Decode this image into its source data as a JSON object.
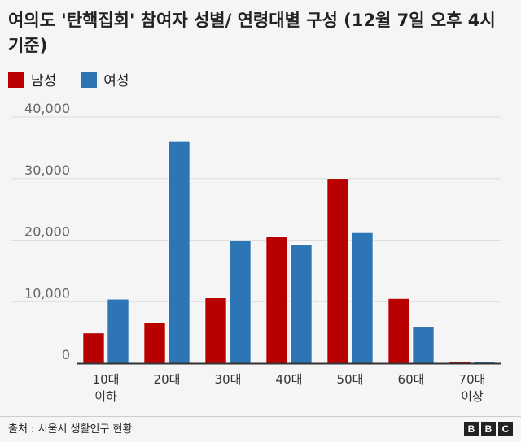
{
  "title": "여의도 '탄핵집회' 참여자 성별/ 연령대별 구성 (12월 7일 오후 4시 기준)",
  "source": "출처 : 서울시 생활인구 현황",
  "logo": [
    "B",
    "B",
    "C"
  ],
  "chart_data": {
    "type": "bar",
    "categories": [
      "10대\n이하",
      "20대",
      "30대",
      "40대",
      "50대",
      "60대",
      "70대\n이상"
    ],
    "series": [
      {
        "name": "남성",
        "color": "#b80000",
        "values": [
          4900,
          6600,
          10600,
          20500,
          30000,
          10500,
          200
        ]
      },
      {
        "name": "여성",
        "color": "#2e75b6",
        "values": [
          10400,
          36000,
          19900,
          19300,
          21200,
          5900,
          200
        ]
      }
    ],
    "yticks": [
      "0",
      "10,000",
      "20,000",
      "30,000",
      "40,000"
    ],
    "ylim": [
      0,
      40000
    ],
    "grid": true,
    "legend": "top-left"
  }
}
